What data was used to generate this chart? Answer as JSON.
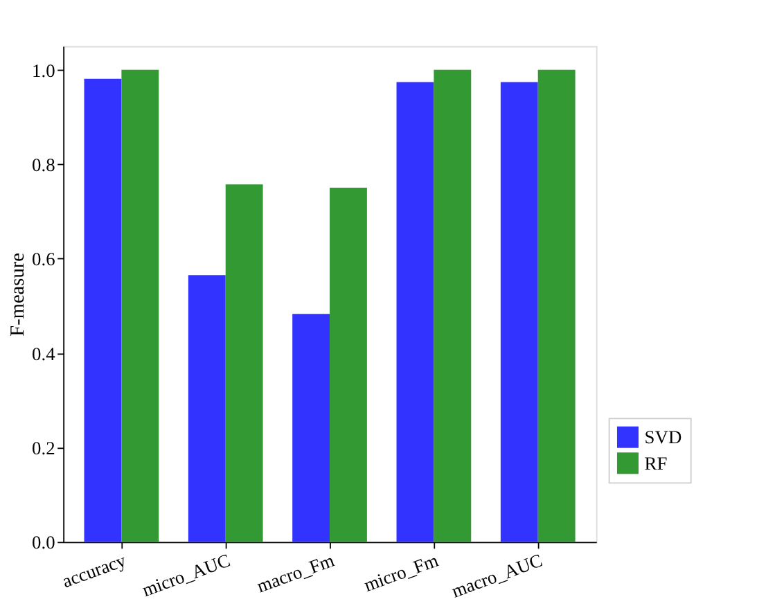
{
  "chart_data": {
    "type": "bar",
    "ylabel": "F-measure",
    "categories": [
      "accuracy",
      "micro_AUC",
      "macro_Fm",
      "micro_Fm",
      "macro_AUC"
    ],
    "series": [
      {
        "name": "SVD",
        "color": "#3333ff",
        "values": [
          0.981,
          0.565,
          0.483,
          0.974,
          0.974
        ]
      },
      {
        "name": "RF",
        "color": "#339933",
        "values": [
          1.0,
          0.757,
          0.75,
          1.0,
          1.0
        ]
      }
    ],
    "ylim": [
      0,
      1.05
    ],
    "yticks": [
      {
        "value": 0,
        "label": "0.0"
      },
      0.2,
      0.4,
      0.6,
      0.8,
      {
        "value": 1,
        "label": "1.0"
      }
    ],
    "grid": false,
    "legend": "bottom right"
  }
}
